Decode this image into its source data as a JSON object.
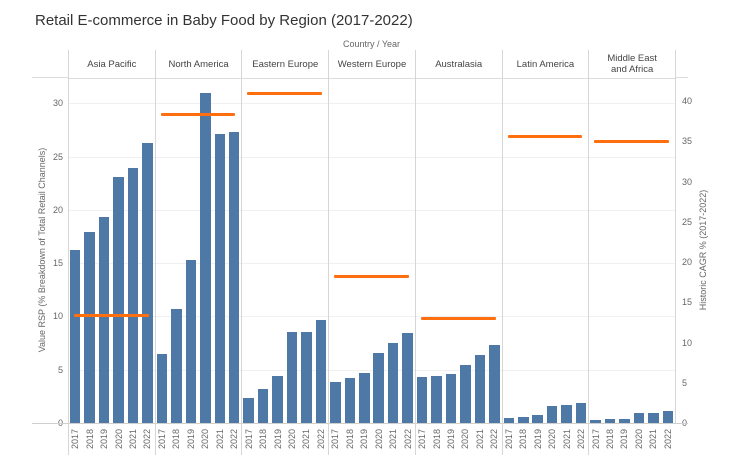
{
  "title": "Retail E-commerce in Baby Food by Region (2017-2022)",
  "column_header": "Country  /  Year",
  "left_axis_label": "Value RSP (% Breakdown of Total Retail Channels)",
  "right_axis_label": "Historic CAGR % (2017-2022)",
  "colors": {
    "bar": "#4e79a7",
    "cagr_line": "#ff6f0f",
    "gridline": "#f0f0f0"
  },
  "chart_data": {
    "type": "bar",
    "title": "Retail E-commerce in Baby Food by Region (2017-2022)",
    "xlabel": "Country / Year",
    "ylabel": "Value RSP (% Breakdown of Total Retail Channels)",
    "y2label": "Historic CAGR % (2017-2022)",
    "ylim": [
      0,
      32
    ],
    "y2lim": [
      0,
      42
    ],
    "left_ticks": [
      0,
      5,
      10,
      15,
      20,
      25,
      30
    ],
    "right_ticks": [
      0,
      5,
      10,
      15,
      20,
      25,
      30,
      35,
      40
    ],
    "years": [
      "2017",
      "2018",
      "2019",
      "2020",
      "2021",
      "2022"
    ],
    "grid": true,
    "legend": null,
    "regions": [
      {
        "name": "Asia Pacific",
        "values": [
          16.2,
          17.9,
          19.3,
          23.1,
          23.9,
          26.3
        ],
        "cagr": 13.4
      },
      {
        "name": "North America",
        "values": [
          6.5,
          10.7,
          15.3,
          31.0,
          27.1,
          27.3
        ],
        "cagr": 38.3
      },
      {
        "name": "Eastern Europe",
        "values": [
          2.3,
          3.2,
          4.4,
          8.5,
          8.5,
          9.7
        ],
        "cagr": 40.9
      },
      {
        "name": "Western Europe",
        "values": [
          3.8,
          4.2,
          4.7,
          6.6,
          7.5,
          8.4
        ],
        "cagr": 18.2
      },
      {
        "name": "Australasia",
        "values": [
          4.3,
          4.4,
          4.6,
          5.4,
          6.4,
          7.3
        ],
        "cagr": 13.0
      },
      {
        "name": "Latin America",
        "values": [
          0.5,
          0.6,
          0.75,
          1.6,
          1.7,
          1.9
        ],
        "cagr": 35.6
      },
      {
        "name": "Middle East and Africa",
        "values": [
          0.3,
          0.35,
          0.35,
          0.9,
          0.9,
          1.1
        ],
        "cagr": 35.0
      }
    ],
    "series": [
      {
        "name": "Value RSP (% Breakdown of Total Retail Channels)",
        "kind": "bar",
        "axis": "left"
      },
      {
        "name": "Historic CAGR % (2017-2022)",
        "kind": "reference-line",
        "axis": "right"
      }
    ]
  }
}
